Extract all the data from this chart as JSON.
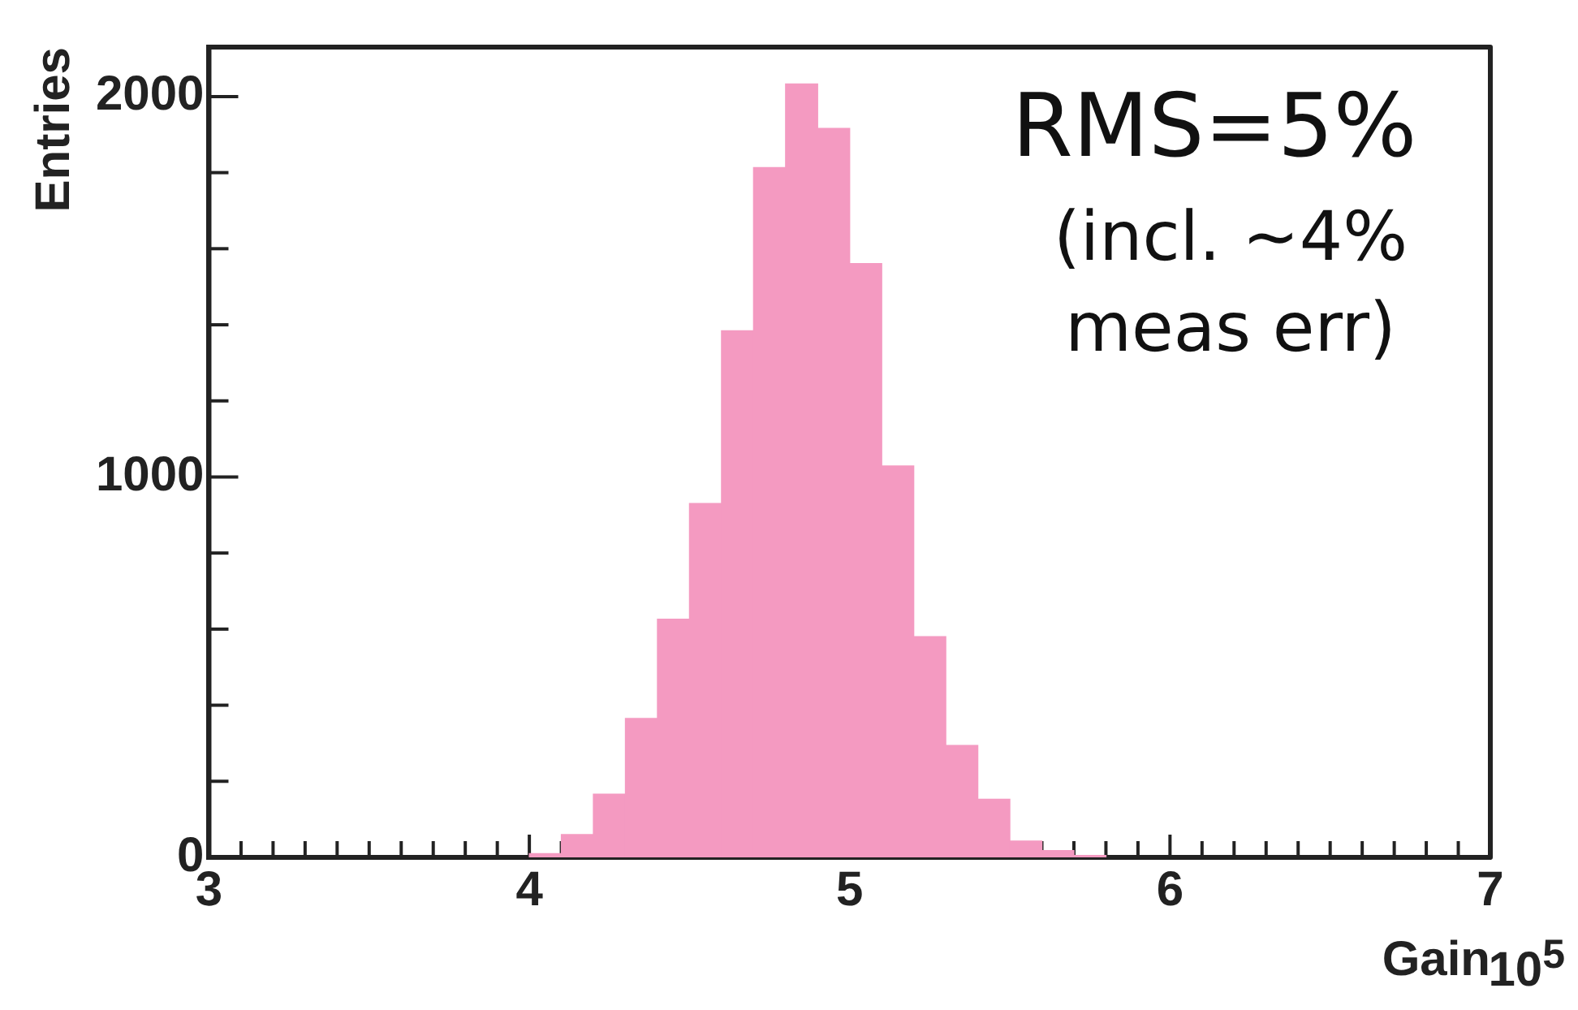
{
  "chart_data": {
    "type": "histogram",
    "xlabel": "Gain",
    "ylabel": "Entries",
    "bins": [
      4.0,
      4.1,
      4.2,
      4.3,
      4.4,
      4.5,
      4.6,
      4.7,
      4.8,
      4.9,
      5.0,
      5.1,
      5.2,
      5.3,
      5.4,
      5.5,
      5.6,
      5.7,
      5.8
    ],
    "values": [
      10,
      60,
      166,
      365,
      626,
      930,
      1384,
      1813,
      2033,
      1916,
      1561,
      1029,
      580,
      294,
      153,
      43,
      18,
      5
    ],
    "color": "#f49ac1",
    "xlim": [
      3,
      7
    ],
    "xticks": [
      3,
      {
        "value": 3.1,
        "label": null
      },
      {
        "value": 3.2,
        "label": null
      },
      {
        "value": 3.3,
        "label": null
      },
      {
        "value": 3.4,
        "label": null
      },
      {
        "value": 3.5,
        "label": null
      },
      {
        "value": 3.6,
        "label": null
      },
      {
        "value": 3.7,
        "label": null
      },
      {
        "value": 3.8,
        "label": null
      },
      {
        "value": 3.9,
        "label": null
      },
      4,
      {
        "value": 4.1,
        "label": null
      },
      {
        "value": 4.2,
        "label": null
      },
      {
        "value": 4.3,
        "label": null
      },
      {
        "value": 4.4,
        "label": null
      },
      {
        "value": 4.5,
        "label": null
      },
      {
        "value": 4.6,
        "label": null
      },
      {
        "value": 4.7,
        "label": null
      },
      {
        "value": 4.8,
        "label": null
      },
      {
        "value": 4.9,
        "label": null
      },
      5,
      {
        "value": 5.1,
        "label": null
      },
      {
        "value": 5.2,
        "label": null
      },
      {
        "value": 5.3,
        "label": null
      },
      {
        "value": 5.4,
        "label": null
      },
      {
        "value": 5.5,
        "label": null
      },
      {
        "value": 5.6,
        "label": null
      },
      {
        "value": 5.7,
        "label": null
      },
      {
        "value": 5.8,
        "label": null
      },
      {
        "value": 5.9,
        "label": null
      },
      6,
      {
        "value": 6.1,
        "label": null
      },
      {
        "value": 6.2,
        "label": null
      },
      {
        "value": 6.3,
        "label": null
      },
      {
        "value": 6.4,
        "label": null
      },
      {
        "value": 6.5,
        "label": null
      },
      {
        "value": 6.6,
        "label": null
      },
      {
        "value": 6.7,
        "label": null
      },
      {
        "value": 6.8,
        "label": null
      },
      {
        "value": 6.9,
        "label": null
      },
      7
    ],
    "ylim": [
      0,
      2130
    ],
    "yticks": [
      0,
      {
        "value": 200,
        "label": null
      },
      {
        "value": 400,
        "label": null
      },
      {
        "value": 600,
        "label": null
      },
      {
        "value": 800,
        "label": null
      },
      1000,
      {
        "value": 1200,
        "label": null
      },
      {
        "value": 1400,
        "label": null
      },
      {
        "value": 1600,
        "label": null
      },
      {
        "value": 1800,
        "label": null
      },
      2000
    ],
    "grid": false,
    "legend": false,
    "annotations": [
      "RMS=5%",
      "(incl. ~4% meas err)",
      "10$^{5}$"
    ]
  }
}
